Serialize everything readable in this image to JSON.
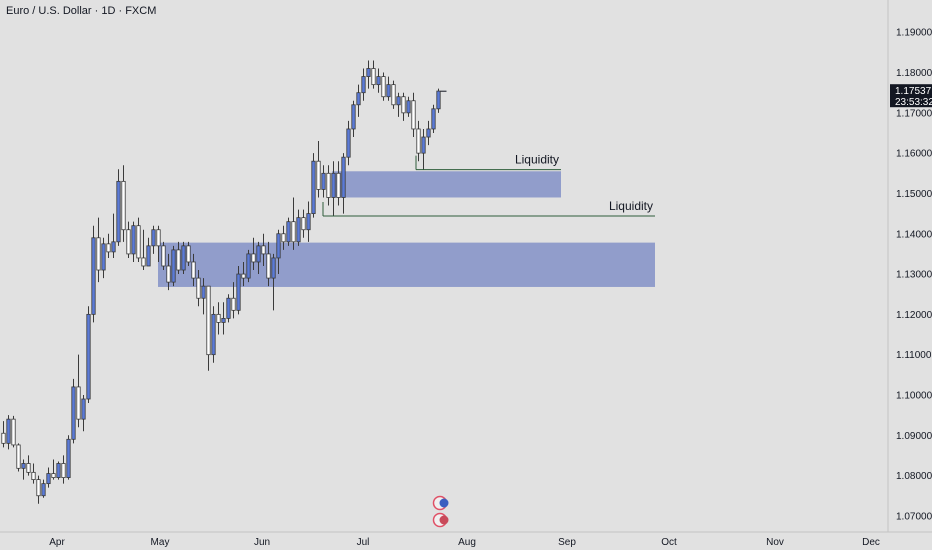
{
  "chart_data": {
    "type": "candlestick",
    "title": "Euro / U.S. Dollar · 1D · FXCM",
    "ylim": [
      1.066,
      1.198
    ],
    "y_ticks": [
      "1.07000",
      "1.08000",
      "1.09000",
      "1.10000",
      "1.11000",
      "1.12000",
      "1.13000",
      "1.14000",
      "1.15000",
      "1.16000",
      "1.17000",
      "1.18000",
      "1.19000"
    ],
    "x_ticks": [
      "Apr",
      "May",
      "Jun",
      "Jul",
      "Aug",
      "Sep",
      "Oct",
      "Nov",
      "Dec"
    ],
    "last_price": "1.17537",
    "countdown": "23:53:32",
    "colors": {
      "up": "#5b7ad6",
      "down": "#ffffff",
      "wick": "#3a3a3a",
      "zone": "#8896c9",
      "last": "#131722",
      "background": "#e1e1e1"
    },
    "zones": [
      {
        "y_top": 1.1555,
        "y_bottom": 1.149
      },
      {
        "y_top": 1.1378,
        "y_bottom": 1.1268
      }
    ],
    "liquidity_lines": [
      {
        "label": "Liquidity",
        "y": 1.1559
      },
      {
        "label": "Liquidity",
        "y": 1.1444
      }
    ],
    "candles": [
      [
        1.0905,
        1.0935,
        1.087,
        1.088
      ],
      [
        1.088,
        1.095,
        1.0865,
        1.094
      ],
      [
        1.094,
        1.0948,
        1.087,
        1.0876
      ],
      [
        1.0876,
        1.088,
        1.081,
        1.0818
      ],
      [
        1.0818,
        1.084,
        1.079,
        1.083
      ],
      [
        1.083,
        1.085,
        1.08,
        1.0808
      ],
      [
        1.0808,
        1.083,
        1.078,
        1.079
      ],
      [
        1.079,
        1.08,
        1.073,
        1.075
      ],
      [
        1.075,
        1.079,
        1.0745,
        1.078
      ],
      [
        1.078,
        1.082,
        1.077,
        1.0805
      ],
      [
        1.0805,
        1.084,
        1.079,
        1.0795
      ],
      [
        1.0795,
        1.0835,
        1.079,
        1.083
      ],
      [
        1.083,
        1.085,
        1.078,
        1.0795
      ],
      [
        1.0795,
        1.09,
        1.079,
        1.089
      ],
      [
        1.089,
        1.104,
        1.088,
        1.102
      ],
      [
        1.102,
        1.11,
        1.092,
        1.094
      ],
      [
        1.094,
        1.1,
        1.091,
        1.099
      ],
      [
        1.099,
        1.122,
        1.098,
        1.12
      ],
      [
        1.12,
        1.142,
        1.118,
        1.139
      ],
      [
        1.139,
        1.144,
        1.128,
        1.131
      ],
      [
        1.131,
        1.139,
        1.129,
        1.1375
      ],
      [
        1.1375,
        1.14,
        1.134,
        1.1355
      ],
      [
        1.1355,
        1.145,
        1.134,
        1.138
      ],
      [
        1.138,
        1.156,
        1.137,
        1.153
      ],
      [
        1.153,
        1.157,
        1.138,
        1.141
      ],
      [
        1.141,
        1.143,
        1.134,
        1.135
      ],
      [
        1.135,
        1.143,
        1.133,
        1.142
      ],
      [
        1.142,
        1.144,
        1.133,
        1.134
      ],
      [
        1.134,
        1.141,
        1.131,
        1.132
      ],
      [
        1.132,
        1.139,
        1.132,
        1.137
      ],
      [
        1.137,
        1.142,
        1.135,
        1.141
      ],
      [
        1.141,
        1.142,
        1.133,
        1.137
      ],
      [
        1.137,
        1.138,
        1.131,
        1.132
      ],
      [
        1.132,
        1.135,
        1.126,
        1.128
      ],
      [
        1.128,
        1.137,
        1.127,
        1.136
      ],
      [
        1.136,
        1.138,
        1.13,
        1.131
      ],
      [
        1.131,
        1.138,
        1.13,
        1.137
      ],
      [
        1.137,
        1.138,
        1.132,
        1.133
      ],
      [
        1.133,
        1.135,
        1.127,
        1.129
      ],
      [
        1.129,
        1.131,
        1.122,
        1.124
      ],
      [
        1.124,
        1.129,
        1.12,
        1.127
      ],
      [
        1.127,
        1.127,
        1.106,
        1.11
      ],
      [
        1.11,
        1.122,
        1.108,
        1.12
      ],
      [
        1.12,
        1.123,
        1.115,
        1.118
      ],
      [
        1.118,
        1.123,
        1.115,
        1.119
      ],
      [
        1.119,
        1.125,
        1.118,
        1.124
      ],
      [
        1.124,
        1.128,
        1.119,
        1.121
      ],
      [
        1.121,
        1.132,
        1.12,
        1.13
      ],
      [
        1.13,
        1.133,
        1.127,
        1.129
      ],
      [
        1.129,
        1.136,
        1.128,
        1.135
      ],
      [
        1.135,
        1.139,
        1.131,
        1.133
      ],
      [
        1.133,
        1.138,
        1.13,
        1.137
      ],
      [
        1.137,
        1.14,
        1.132,
        1.135
      ],
      [
        1.135,
        1.138,
        1.127,
        1.129
      ],
      [
        1.129,
        1.135,
        1.121,
        1.134
      ],
      [
        1.134,
        1.141,
        1.13,
        1.14
      ],
      [
        1.14,
        1.142,
        1.136,
        1.138
      ],
      [
        1.138,
        1.144,
        1.137,
        1.143
      ],
      [
        1.143,
        1.149,
        1.136,
        1.138
      ],
      [
        1.138,
        1.146,
        1.137,
        1.144
      ],
      [
        1.144,
        1.146,
        1.139,
        1.141
      ],
      [
        1.141,
        1.148,
        1.138,
        1.145
      ],
      [
        1.145,
        1.16,
        1.144,
        1.158
      ],
      [
        1.158,
        1.163,
        1.149,
        1.151
      ],
      [
        1.151,
        1.157,
        1.149,
        1.155
      ],
      [
        1.155,
        1.157,
        1.147,
        1.149
      ],
      [
        1.149,
        1.158,
        1.1444,
        1.155
      ],
      [
        1.155,
        1.158,
        1.147,
        1.149
      ],
      [
        1.149,
        1.16,
        1.145,
        1.159
      ],
      [
        1.159,
        1.168,
        1.157,
        1.166
      ],
      [
        1.166,
        1.173,
        1.164,
        1.172
      ],
      [
        1.172,
        1.177,
        1.169,
        1.175
      ],
      [
        1.175,
        1.181,
        1.173,
        1.179
      ],
      [
        1.179,
        1.183,
        1.176,
        1.181
      ],
      [
        1.181,
        1.183,
        1.176,
        1.177
      ],
      [
        1.177,
        1.181,
        1.175,
        1.179
      ],
      [
        1.179,
        1.18,
        1.173,
        1.174
      ],
      [
        1.174,
        1.179,
        1.173,
        1.177
      ],
      [
        1.177,
        1.178,
        1.171,
        1.172
      ],
      [
        1.172,
        1.175,
        1.169,
        1.174
      ],
      [
        1.174,
        1.175,
        1.168,
        1.17
      ],
      [
        1.17,
        1.174,
        1.169,
        1.173
      ],
      [
        1.173,
        1.175,
        1.164,
        1.166
      ],
      [
        1.166,
        1.168,
        1.158,
        1.16
      ],
      [
        1.16,
        1.166,
        1.1559,
        1.164
      ],
      [
        1.164,
        1.168,
        1.162,
        1.166
      ],
      [
        1.166,
        1.172,
        1.165,
        1.171
      ],
      [
        1.171,
        1.176,
        1.17,
        1.1754
      ]
    ]
  }
}
